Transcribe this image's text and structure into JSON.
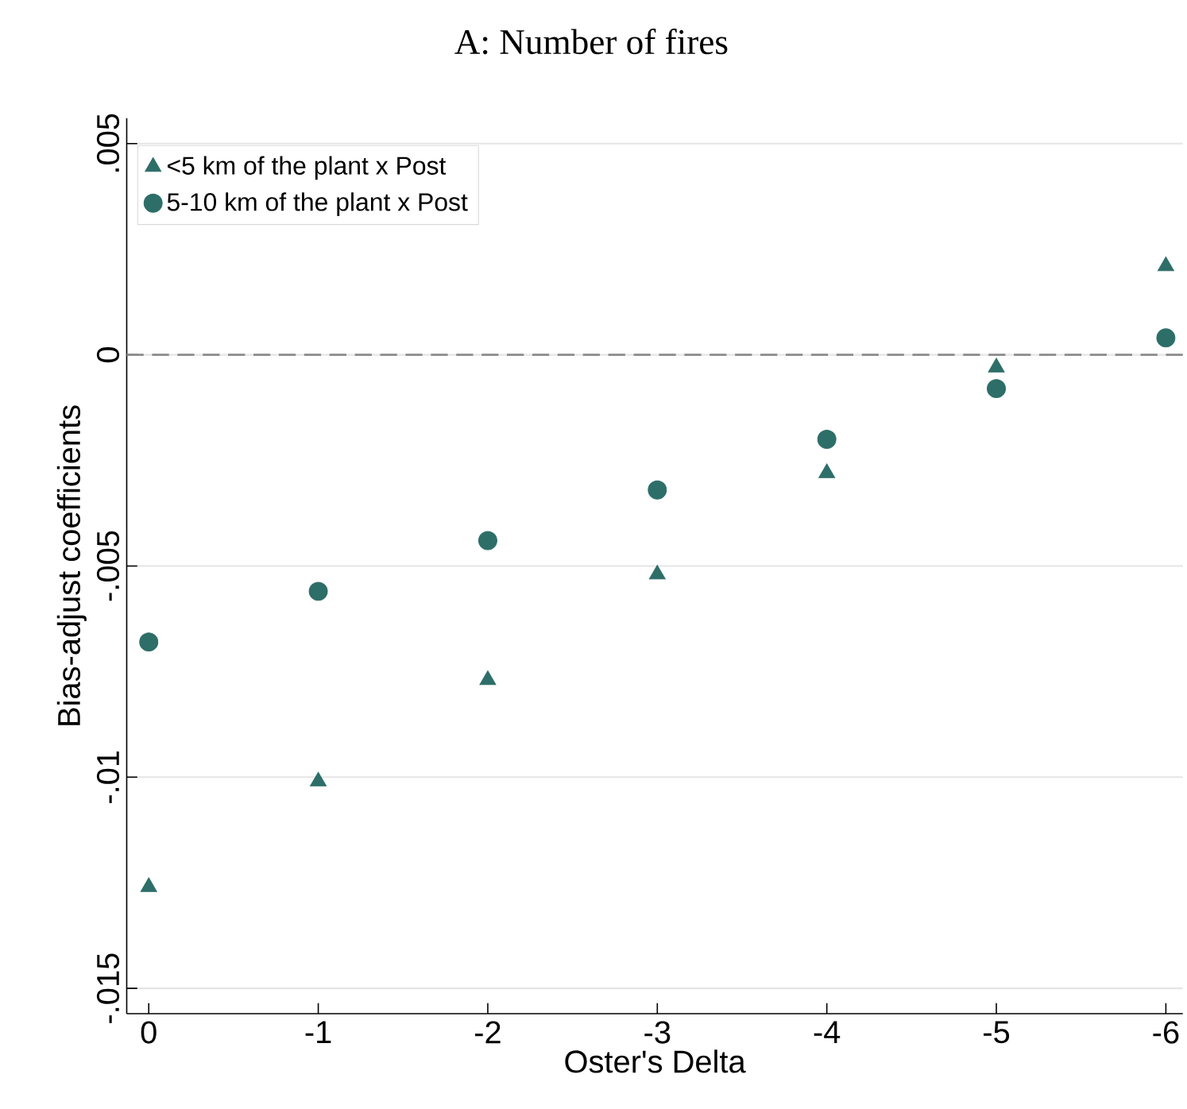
{
  "chart_data": {
    "type": "scatter",
    "title": "A: Number of fires",
    "xlabel": "Oster's Delta",
    "ylabel": "Bias-adjust coefficients",
    "x": [
      0,
      -1,
      -2,
      -3,
      -4,
      -5,
      -6
    ],
    "series": [
      {
        "name": "<5 km of the plant x Post",
        "color": "#2e6e68",
        "marker": "triangle",
        "values": [
          -0.0126,
          -0.0101,
          -0.0077,
          -0.0052,
          -0.0028,
          -0.0003,
          0.0021
        ]
      },
      {
        "name": "5-10 km of the plant x Post",
        "color": "#2e6e68",
        "marker": "circle",
        "values": [
          -0.0068,
          -0.0056,
          -0.0044,
          -0.0032,
          -0.002,
          -0.0008,
          0.0004
        ]
      }
    ],
    "xlim": [
      0.13,
      -6.1
    ],
    "xticks": [
      0,
      -1,
      -2,
      -3,
      -4,
      -5,
      -6
    ],
    "ylim": [
      -0.0156,
      0.0056
    ],
    "yticks": [
      {
        "value": -0.015,
        "label": "-.015"
      },
      {
        "value": -0.01,
        "label": "-.01"
      },
      {
        "value": -0.005,
        "label": "-.005"
      },
      {
        "value": 0,
        "label": "0"
      },
      {
        "value": 0.005,
        "label": ".005"
      }
    ],
    "grid": "y",
    "legend": "top left",
    "ref_lines": [
      {
        "axis": "y",
        "value": 0,
        "color": "#8c8c8c",
        "line_style": "dashed"
      }
    ]
  }
}
